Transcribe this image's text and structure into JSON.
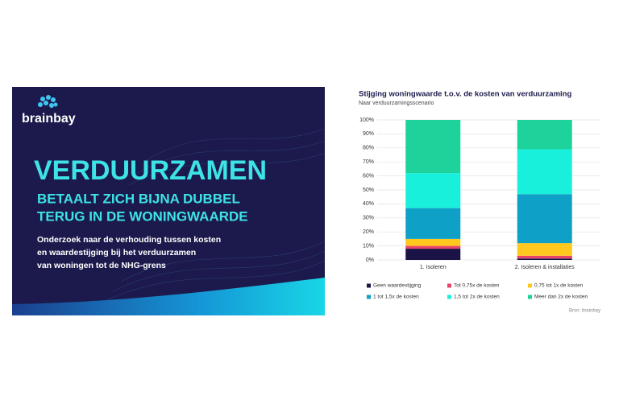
{
  "banner": {
    "brand": "brainbay",
    "headline": "VERDUURZAMEN",
    "subheadline": [
      "BETAALT ZICH BIJNA DUBBEL",
      "TERUG IN DE WONINGWAARDE"
    ],
    "body": [
      "Onderzoek naar de verhouding tussen kosten",
      "en waardestijging bij het verduurzamen",
      "van woningen tot de NHG-grens"
    ]
  },
  "chart_data": {
    "type": "stacked-bar",
    "title": "Stijging woningwaarde t.o.v. de kosten van verduurzaming",
    "subtitle": "Naar verduurzamingsscenario",
    "source": "Bron: brainbay",
    "categories": [
      "1. Isoleren",
      "2. Isoleren & installaties"
    ],
    "series": [
      {
        "name": "Geen waardestijging",
        "color": "#1a1446",
        "values": [
          8,
          1
        ]
      },
      {
        "name": "Tot 0,75x de kosten",
        "color": "#e8446b",
        "values": [
          2,
          2
        ]
      },
      {
        "name": "0,75 tot 1x de kosten",
        "color": "#ffc81e",
        "values": [
          5,
          9
        ]
      },
      {
        "name": "1 tot 1,5x de kosten",
        "color": "#0fa0c8",
        "values": [
          22,
          35
        ]
      },
      {
        "name": "1,5 tot 2x de kosten",
        "color": "#18f0dc",
        "values": [
          25,
          32
        ]
      },
      {
        "name": "Meer dan 2x de kosten",
        "color": "#1ed29b",
        "values": [
          38,
          21
        ]
      }
    ],
    "ylim": [
      0,
      100
    ],
    "yticks": [
      {
        "value": 0,
        "label": "0%"
      },
      {
        "value": 10,
        "label": "10%"
      },
      {
        "value": 20,
        "label": "20%"
      },
      {
        "value": 30,
        "label": "30%"
      },
      {
        "value": 40,
        "label": "40%"
      },
      {
        "value": 50,
        "label": "50%"
      },
      {
        "value": 60,
        "label": "60%"
      },
      {
        "value": 70,
        "label": "70%"
      },
      {
        "value": 80,
        "label": "80%"
      },
      {
        "value": 90,
        "label": "90%"
      },
      {
        "value": 100,
        "label": "100%"
      }
    ],
    "grid": true
  }
}
